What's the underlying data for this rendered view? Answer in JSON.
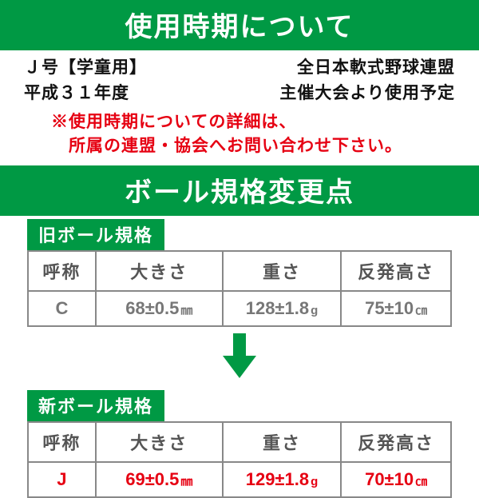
{
  "colors": {
    "green": "#009944",
    "black": "#111111",
    "red": "#e60012",
    "header_gray": "#555555",
    "old_value_gray": "#777777",
    "border_gray": "#888888",
    "white": "#ffffff"
  },
  "typography": {
    "band_fontsize": 34,
    "info_fontsize": 21,
    "notice_fontsize": 21,
    "spec_title_fontsize": 22,
    "th_fontsize": 22,
    "td_fontsize": 22,
    "unit_fontsize": 15
  },
  "band1": {
    "text": "使用時期について"
  },
  "info": {
    "row1_left": "Ｊ号【学童用】",
    "row1_right": "全日本軟式野球連盟",
    "row2_left": "平成３１年度",
    "row2_right": "主催大会より使用予定"
  },
  "notice": {
    "line1": "※使用時期についての詳細は、",
    "line2": "　所属の連盟・協会へお問い合わせ下さい。"
  },
  "band2": {
    "text": "ボール規格変更点"
  },
  "columns": {
    "c1": "呼称",
    "c2": "大きさ",
    "c3": "重さ",
    "c4": "反発高さ",
    "widths_pct": [
      16,
      30,
      28,
      26
    ]
  },
  "old_spec": {
    "title": "旧ボール規格",
    "name": "C",
    "size_val": "68±0.5",
    "size_unit": "㎜",
    "weight_val": "128±1.8",
    "weight_unit": "g",
    "bounce_val": "75±10",
    "bounce_unit": "㎝"
  },
  "new_spec": {
    "title": "新ボール規格",
    "name": "J",
    "size_val": "69±0.5",
    "size_unit": "㎜",
    "weight_val": "129±1.8",
    "weight_unit": "g",
    "bounce_val": "70±10",
    "bounce_unit": "㎝"
  },
  "arrow": {
    "color": "#009944",
    "width": 54,
    "height": 56
  }
}
